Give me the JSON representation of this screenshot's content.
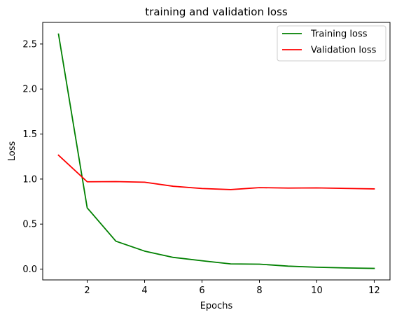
{
  "chart_data": {
    "type": "line",
    "title": "training and validation loss",
    "xlabel": "Epochs",
    "ylabel": "Loss",
    "x": [
      1,
      2,
      3,
      4,
      5,
      6,
      7,
      8,
      9,
      10,
      11,
      12
    ],
    "xlim": [
      0.45,
      12.55
    ],
    "ylim": [
      -0.12,
      2.74
    ],
    "xticks": [
      2,
      4,
      6,
      8,
      10,
      12
    ],
    "xtick_labels": [
      "2",
      "4",
      "6",
      "8",
      "10",
      "12"
    ],
    "yticks": [
      0.0,
      0.5,
      1.0,
      1.5,
      2.0,
      2.5
    ],
    "ytick_labels": [
      "0.0",
      "0.5",
      "1.0",
      "1.5",
      "2.0",
      "2.5"
    ],
    "grid": false,
    "legend_position": "top-right",
    "series": [
      {
        "name": "Training loss",
        "color": "#008000",
        "values": [
          2.61,
          0.68,
          0.31,
          0.2,
          0.13,
          0.093,
          0.058,
          0.055,
          0.033,
          0.021,
          0.013,
          0.008
        ]
      },
      {
        "name": "Validation loss",
        "color": "#ff0000",
        "values": [
          1.265,
          0.97,
          0.972,
          0.965,
          0.92,
          0.895,
          0.883,
          0.905,
          0.9,
          0.902,
          0.896,
          0.891
        ]
      }
    ]
  }
}
